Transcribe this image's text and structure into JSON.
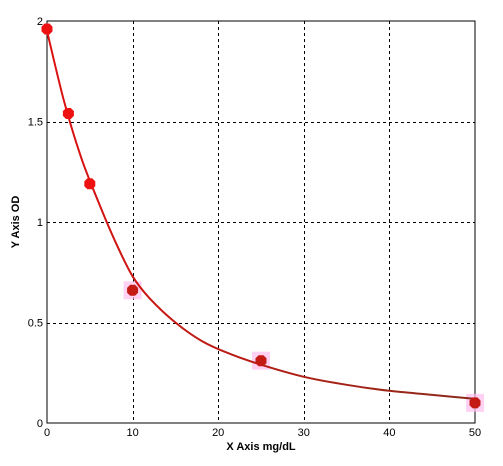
{
  "chart_data": {
    "type": "scatter",
    "xlabel": "X Axis mg/dL",
    "ylabel": "Y Axis OD",
    "xlim": [
      0,
      50
    ],
    "ylim": [
      0,
      2
    ],
    "x_ticks": [
      "0",
      "10",
      "20",
      "30",
      "40",
      "50"
    ],
    "y_ticks": [
      "0",
      "0.5",
      "1",
      "1.5",
      "2"
    ],
    "grid": true,
    "grid_style": "dashed",
    "points": {
      "x": [
        0,
        2.5,
        5,
        10,
        25,
        50
      ],
      "y": [
        1.96,
        1.54,
        1.19,
        0.66,
        0.31,
        0.1
      ]
    },
    "fit_curve": {
      "x": [
        0,
        2,
        4,
        6,
        8,
        10,
        12,
        15,
        18,
        21,
        25,
        30,
        35,
        40,
        45,
        50
      ],
      "y": [
        1.95,
        1.6,
        1.32,
        1.1,
        0.9,
        0.73,
        0.62,
        0.5,
        0.41,
        0.35,
        0.29,
        0.23,
        0.19,
        0.16,
        0.14,
        0.12
      ]
    },
    "colors": {
      "points": "#ee1111",
      "curve_start": "#dd1111",
      "curve_end": "#8b2a1a",
      "halo": "#ffbfee",
      "grid": "#000000"
    }
  }
}
